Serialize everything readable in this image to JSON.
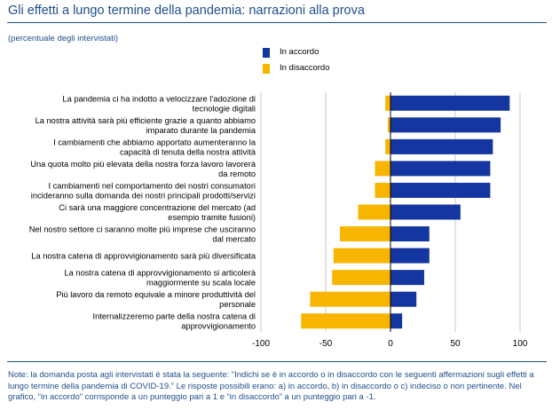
{
  "title": "Gli effetti a lungo termine della pandemia: narrazioni alla prova",
  "subtitle": "(percentuale degli intervistati)",
  "note": "Note: la domanda posta agli intervistati è stata la seguente: “Indichi se è in accordo o in disaccordo con le seguenti affermazioni sugli effetti a lungo termine della pandemia di COVID-19.” Le risposte possibili erano: a) in accordo, b) in disaccordo o c) indeciso o non pertinente. Nel grafico, “in accordo” corrisponde a un punteggio pari a 1 e “in disaccordo” a un punteggio pari a -1.",
  "colors": {
    "accord": "#1436a0",
    "disaccord": "#f7b500",
    "title": "#1f4e8c",
    "grid": "#c8c8c8"
  },
  "chart_data": {
    "type": "bar",
    "orientation": "horizontal",
    "stacked": "diverging",
    "legend": [
      {
        "name": "In accordo"
      },
      {
        "name": "In disaccordo"
      }
    ],
    "xlim": [
      -100,
      100
    ],
    "xticks": [
      -100,
      -50,
      0,
      50,
      100
    ],
    "grid": true,
    "categories": [
      [
        "La pandemia ci ha indotto a velocizzare l’adozione di",
        "tecnologie digitali"
      ],
      [
        "La nostra attività sarà più efficiente grazie a quanto abbiamo",
        "imparato durante la pandemia"
      ],
      [
        "I cambiamenti che abbiamo apportato aumenteranno la",
        "capacità di tenuta della nostra attività"
      ],
      [
        "Una quota molto più elevata della nostra forza lavoro lavorerà",
        "da remoto"
      ],
      [
        "I cambiamenti nel comportamento dei nostri consumatori",
        "incideranno sulla domanda dei nostri principali prodotti/servizi"
      ],
      [
        "Ci sarà una maggiore concentrazione del mercato (ad",
        "esempio tramite fusioni)"
      ],
      [
        "Nel nostro settore ci saranno molte più imprese che usciranno",
        "dal mercato"
      ],
      [
        "La nostra catena di approvvigionamento sarà più diversificata"
      ],
      [
        "La nostra catena di approvvigionamento si articolerà",
        "maggiormente su scala locale"
      ],
      [
        "Più lavoro da remoto equivale a minore produttività del",
        "personale"
      ],
      [
        "Internalizzeremo parte della nostra catena di",
        "approvvigionamento"
      ]
    ],
    "series": [
      {
        "name": "In accordo",
        "values": [
          92,
          85,
          79,
          77,
          77,
          54,
          30,
          30,
          26,
          20,
          9
        ]
      },
      {
        "name": "In disaccordo",
        "values": [
          -4,
          -2,
          -4,
          -12,
          -12,
          -25,
          -39,
          -44,
          -45,
          -62,
          -69
        ]
      }
    ]
  }
}
